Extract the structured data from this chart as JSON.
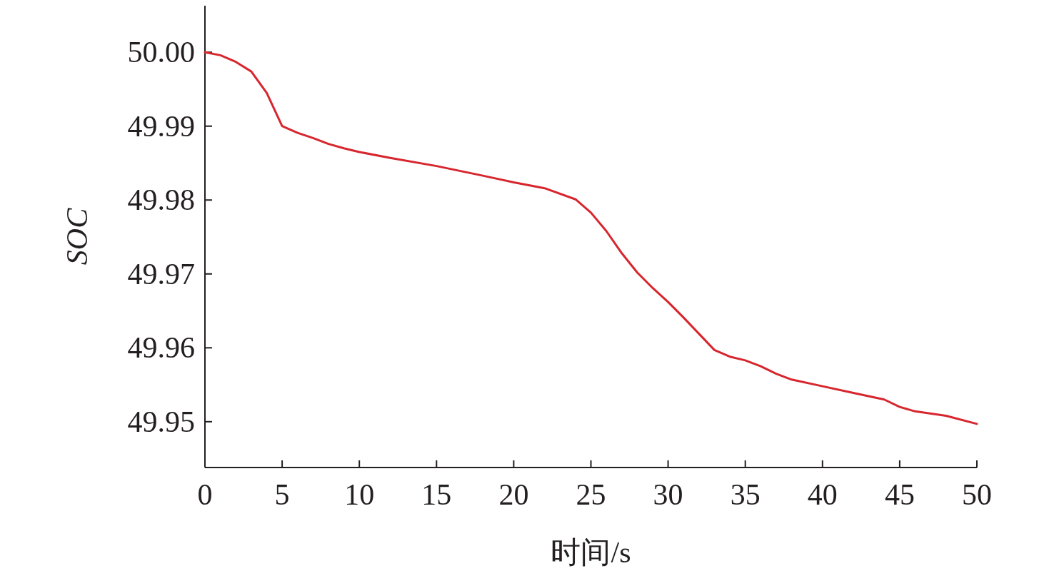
{
  "chart_data": {
    "type": "line",
    "xlabel": "时间/s",
    "ylabel": "SOC",
    "x": [
      0,
      1,
      2,
      3,
      4,
      5,
      6,
      7,
      8,
      9,
      10,
      12,
      15,
      18,
      20,
      22,
      24,
      25,
      26,
      27,
      28,
      29,
      30,
      31,
      32,
      33,
      34,
      35,
      36,
      37,
      38,
      40,
      42,
      44,
      45,
      46,
      48,
      50
    ],
    "series": [
      {
        "color": "#d7262e",
        "values": [
          50.0,
          49.9996,
          49.9987,
          49.9974,
          49.9945,
          49.99,
          49.9891,
          49.9884,
          49.9876,
          49.987,
          49.9865,
          49.9857,
          49.9846,
          49.9833,
          49.9824,
          49.9816,
          49.9801,
          49.9783,
          49.9758,
          49.9728,
          49.9702,
          49.9681,
          49.9662,
          49.9641,
          49.9619,
          49.9597,
          49.9588,
          49.9583,
          49.9575,
          49.9565,
          49.9557,
          49.9548,
          49.9539,
          49.953,
          49.952,
          49.9514,
          49.9508,
          49.9497
        ]
      }
    ],
    "xlim": [
      0,
      50
    ],
    "ylim": [
      49.9438,
      50.0063
    ],
    "xticks": [
      0,
      5,
      10,
      15,
      20,
      25,
      30,
      35,
      40,
      45,
      50
    ],
    "yticks": [
      {
        "value": 49.95,
        "label": "49.95"
      },
      {
        "value": 49.96,
        "label": "49.96"
      },
      {
        "value": 49.97,
        "label": "49.97"
      },
      {
        "value": 49.98,
        "label": "49.98"
      },
      {
        "value": 49.99,
        "label": "49.99"
      },
      {
        "value": 50,
        "label": "50.00"
      }
    ]
  }
}
